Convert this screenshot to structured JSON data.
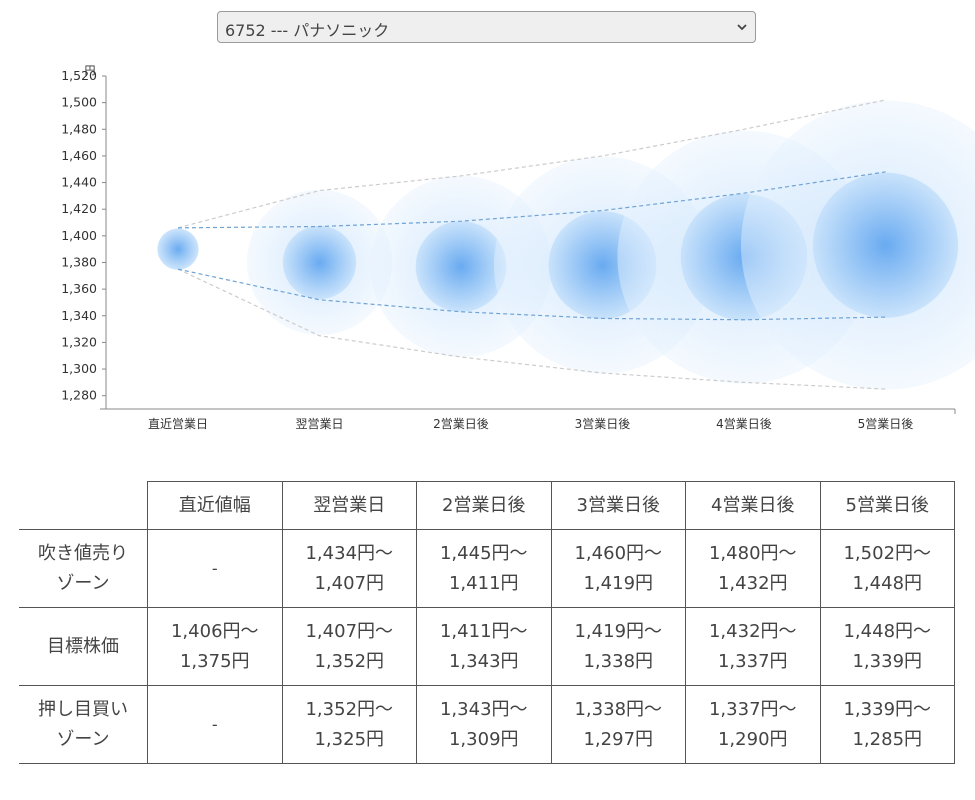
{
  "selector": {
    "value": "6752 --- パナソニック"
  },
  "chart_data": {
    "type": "scatter",
    "y_unit": "円",
    "ylim": [
      1270,
      1520
    ],
    "yticks": [
      1280,
      1300,
      1320,
      1340,
      1360,
      1380,
      1400,
      1420,
      1440,
      1460,
      1480,
      1500,
      1520
    ],
    "ytick_labels": [
      "1,280",
      "1,300",
      "1,320",
      "1,340",
      "1,360",
      "1,380",
      "1,400",
      "1,420",
      "1,440",
      "1,460",
      "1,480",
      "1,500",
      "1,520"
    ],
    "categories": [
      "直近営業日",
      "翌営業日",
      "2営業日後",
      "3営業日後",
      "4営業日後",
      "5営業日後"
    ],
    "center_values": [
      1390,
      1380,
      1377,
      1378,
      1384,
      1393
    ],
    "upper_outer": [
      1406,
      1434,
      1445,
      1460,
      1480,
      1502
    ],
    "upper_inner": [
      1406,
      1407,
      1411,
      1419,
      1432,
      1448
    ],
    "lower_inner": [
      1375,
      1352,
      1343,
      1338,
      1337,
      1339
    ],
    "lower_outer": [
      1375,
      1325,
      1309,
      1297,
      1290,
      1285
    ],
    "grid": false
  },
  "table": {
    "headers": [
      "直近値幅",
      "翌営業日",
      "2営業日後",
      "3営業日後",
      "4営業日後",
      "5営業日後"
    ],
    "rows": [
      {
        "label": [
          "吹き値売り",
          "ゾーン"
        ],
        "cells": [
          [
            "-"
          ],
          [
            "1,434円～",
            "1,407円"
          ],
          [
            "1,445円～",
            "1,411円"
          ],
          [
            "1,460円～",
            "1,419円"
          ],
          [
            "1,480円～",
            "1,432円"
          ],
          [
            "1,502円～",
            "1,448円"
          ]
        ]
      },
      {
        "label": [
          "目標株価"
        ],
        "cells": [
          [
            "1,406円～",
            "1,375円"
          ],
          [
            "1,407円～",
            "1,352円"
          ],
          [
            "1,411円～",
            "1,343円"
          ],
          [
            "1,419円～",
            "1,338円"
          ],
          [
            "1,432円～",
            "1,337円"
          ],
          [
            "1,448円～",
            "1,339円"
          ]
        ]
      },
      {
        "label": [
          "押し目買い",
          "ゾーン"
        ],
        "cells": [
          [
            "-"
          ],
          [
            "1,352円～",
            "1,325円"
          ],
          [
            "1,343円～",
            "1,309円"
          ],
          [
            "1,338円～",
            "1,297円"
          ],
          [
            "1,337円～",
            "1,290円"
          ],
          [
            "1,339円～",
            "1,285円"
          ]
        ]
      }
    ]
  },
  "colors": {
    "bubble": "#4a90e2",
    "axis": "#888888",
    "dashed_inner": "#6fa3d6",
    "dashed_outer": "#c9c9c9"
  }
}
